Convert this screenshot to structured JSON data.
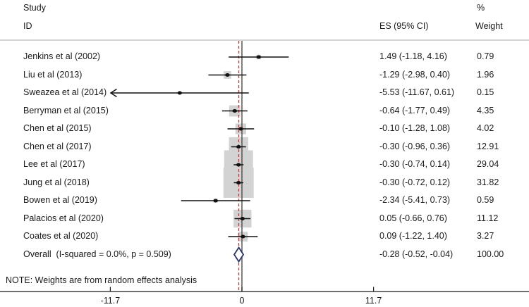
{
  "header": {
    "col_study_line1": "Study",
    "col_study_line2": "ID",
    "col_pct": "%",
    "col_es": "ES (95% CI)",
    "col_weight": "Weight"
  },
  "note": "NOTE: Weights are from random effects analysis",
  "chart_data": {
    "type": "forest",
    "title": "",
    "x_axis": {
      "ticks": [
        -11.7,
        0,
        11.7
      ],
      "tick_labels": [
        "-11.7",
        "0",
        "11.7"
      ]
    },
    "null_line_x": 0,
    "overall_dashed_line_x": -0.28,
    "studies": [
      {
        "id": "Jenkins et al (2002)",
        "es": 1.49,
        "ci_lo": -1.18,
        "ci_hi": 4.16,
        "es_label": "1.49 (-1.18, 4.16)",
        "weight": 0.79,
        "weight_label": "0.79",
        "arrow_lo": false
      },
      {
        "id": "Liu et al (2013)",
        "es": -1.29,
        "ci_lo": -2.98,
        "ci_hi": 0.4,
        "es_label": "-1.29 (-2.98, 0.40)",
        "weight": 1.96,
        "weight_label": "1.96",
        "arrow_lo": false
      },
      {
        "id": "Sweazea et al (2014)",
        "es": -5.53,
        "ci_lo": -11.67,
        "ci_hi": 0.61,
        "es_label": "-5.53 (-11.67, 0.61)",
        "weight": 0.15,
        "weight_label": "0.15",
        "arrow_lo": true
      },
      {
        "id": "Berryman et al (2015)",
        "es": -0.64,
        "ci_lo": -1.77,
        "ci_hi": 0.49,
        "es_label": "-0.64 (-1.77, 0.49)",
        "weight": 4.35,
        "weight_label": "4.35",
        "arrow_lo": false
      },
      {
        "id": "Chen et al (2015)",
        "es": -0.1,
        "ci_lo": -1.28,
        "ci_hi": 1.08,
        "es_label": "-0.10 (-1.28, 1.08)",
        "weight": 4.02,
        "weight_label": "4.02",
        "arrow_lo": false
      },
      {
        "id": "Chen et al (2017)",
        "es": -0.3,
        "ci_lo": -0.96,
        "ci_hi": 0.36,
        "es_label": "-0.30 (-0.96, 0.36)",
        "weight": 12.91,
        "weight_label": "12.91",
        "arrow_lo": false
      },
      {
        "id": "Lee et al (2017)",
        "es": -0.3,
        "ci_lo": -0.74,
        "ci_hi": 0.14,
        "es_label": "-0.30 (-0.74, 0.14)",
        "weight": 29.04,
        "weight_label": "29.04",
        "arrow_lo": false
      },
      {
        "id": "Jung et al (2018)",
        "es": -0.3,
        "ci_lo": -0.72,
        "ci_hi": 0.12,
        "es_label": "-0.30 (-0.72, 0.12)",
        "weight": 31.82,
        "weight_label": "31.82",
        "arrow_lo": false
      },
      {
        "id": "Bowen et al (2019)",
        "es": -2.34,
        "ci_lo": -5.41,
        "ci_hi": 0.73,
        "es_label": "-2.34 (-5.41, 0.73)",
        "weight": 0.59,
        "weight_label": "0.59",
        "arrow_lo": false
      },
      {
        "id": "Palacios et al (2020)",
        "es": 0.05,
        "ci_lo": -0.66,
        "ci_hi": 0.76,
        "es_label": "0.05 (-0.66, 0.76)",
        "weight": 11.12,
        "weight_label": "11.12",
        "arrow_lo": false
      },
      {
        "id": "Coates et al (2020)",
        "es": 0.09,
        "ci_lo": -1.22,
        "ci_hi": 1.4,
        "es_label": "0.09 (-1.22, 1.40)",
        "weight": 3.27,
        "weight_label": "3.27",
        "arrow_lo": false
      }
    ],
    "overall": {
      "id": "Overall  (I-squared = 0.0%, p = 0.509)",
      "es": -0.28,
      "ci_lo": -0.52,
      "ci_hi": -0.04,
      "es_label": "-0.28 (-0.52, -0.04)",
      "weight_label": "100.00"
    },
    "colors": {
      "box": "#d3d3d3",
      "diamond": "#27316e",
      "null_line": "#4a4a4a",
      "overall_dashed": "#ad3f3f",
      "ci_line": "#111111",
      "axis": "#1a1a1a",
      "header_rule": "#a6a6a6",
      "text": "#1a1a1a"
    }
  }
}
